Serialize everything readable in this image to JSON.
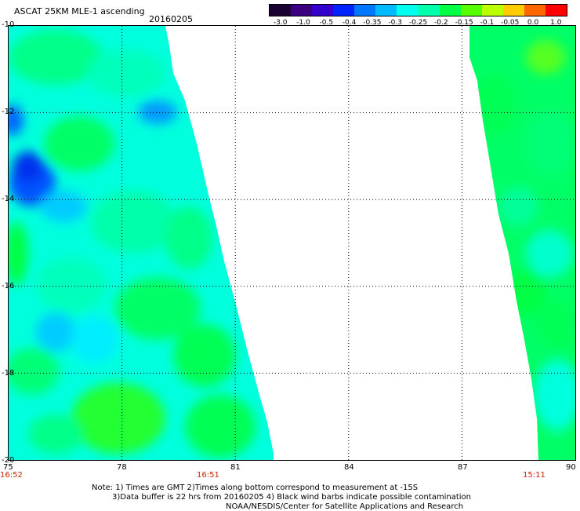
{
  "header": {
    "title": "ASCAT 25KM MLE-1 ascending",
    "date": "20160205"
  },
  "colorbar": {
    "labels": [
      "-3.0",
      "-1.0",
      "-0.5",
      "-0.4",
      "-0.35",
      "-0.3",
      "-0.25",
      "-0.2",
      "-0.15",
      "-0.1",
      "-0.05",
      "0.0",
      "1.0"
    ],
    "colors": [
      "#1a0033",
      "#3a0080",
      "#3300cc",
      "#0022ff",
      "#0077ff",
      "#00bbff",
      "#00ffee",
      "#00ffaa",
      "#00ff44",
      "#55ff00",
      "#bbff00",
      "#ffcc00",
      "#ff6600",
      "#ff0000"
    ]
  },
  "axes": {
    "y_ticks": [
      "-10",
      "-12",
      "-14",
      "-16",
      "-18",
      "-20"
    ],
    "x_ticks": [
      "75",
      "78",
      "81",
      "84",
      "87",
      "90"
    ]
  },
  "swath_times": {
    "left": "16:52",
    "middle": "16:51",
    "right": "15:11"
  },
  "notes": {
    "line1": "Note: 1) Times are GMT 2)Times along bottom correspond to measurement at -15S",
    "line2": "3)Data buffer is 22 hrs from 20160205 4) Black wind barbs indicate possible contamination",
    "line3": "NOAA/NESDIS/Center for Satellite Applications and Research"
  }
}
